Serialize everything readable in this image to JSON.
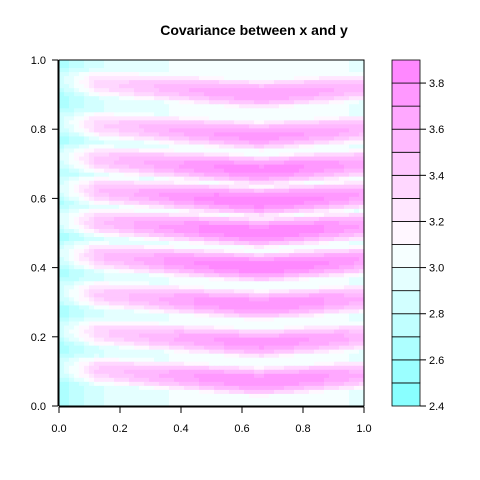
{
  "chart_data": {
    "type": "heatmap",
    "title": "Covariance between x and y",
    "xlabel": "",
    "ylabel": "",
    "xlim": [
      0.0,
      1.0
    ],
    "ylim": [
      0.0,
      1.0
    ],
    "x_ticks": [
      "0.0",
      "0.2",
      "0.4",
      "0.6",
      "0.8",
      "1.0"
    ],
    "y_ticks": [
      "0.0",
      "0.2",
      "0.4",
      "0.6",
      "0.8",
      "1.0"
    ],
    "legend": "right",
    "colorbar": {
      "range": [
        2.4,
        3.9
      ],
      "levels": [
        2.4,
        2.5,
        2.6,
        2.7,
        2.8,
        2.9,
        3.0,
        3.1,
        3.2,
        3.3,
        3.4,
        3.5,
        3.6,
        3.7,
        3.8,
        3.9
      ],
      "tick_labels": [
        "2.4",
        "2.6",
        "2.8",
        "3.0",
        "3.2",
        "3.4",
        "3.6",
        "3.8"
      ],
      "low_color": "#80ffff",
      "mid_color": "#ffffff",
      "high_color": "#ff80ff"
    },
    "bands": {
      "y_centers": [
        0.07,
        0.18,
        0.29,
        0.4,
        0.5,
        0.59,
        0.68,
        0.78,
        0.9
      ],
      "peak_values": [
        3.8,
        3.75,
        3.8,
        3.9,
        3.9,
        3.9,
        3.85,
        3.75,
        3.7
      ],
      "min_value": 2.4,
      "ridge_x": 0.66
    }
  }
}
